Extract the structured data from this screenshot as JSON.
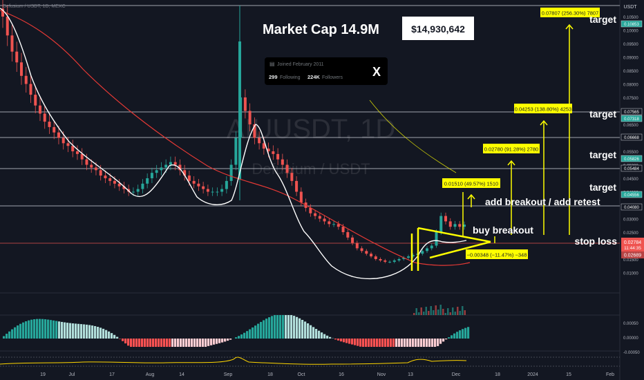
{
  "header": {
    "symbol_line": "Defusium / USDT, 1D, MEXC",
    "watermark_symbol": "AIUUSDT, 1D",
    "watermark_name": "Defusium / USDT",
    "currency": "USDT"
  },
  "market_cap": {
    "label": "Market Cap  14.9M",
    "value": "$14,930,642"
  },
  "profile_card": {
    "joined": "Joined February 2011",
    "following_count": "299",
    "following_label": "Following",
    "followers_count": "224K",
    "followers_label": "Followers",
    "x_logo": "X"
  },
  "annotations": {
    "target1": "target",
    "target2": "target",
    "target3": "target",
    "target4": "target",
    "breakout": "add breakout / add retest",
    "buy": "buy breakout",
    "stop": "stop loss"
  },
  "measure_labels": {
    "m1": "0.01510 (49.57%) 1510",
    "m2": "0.02780 (91.28%) 2780",
    "m3": "0.04253 (138.80%) 4253",
    "m4": "0.07807 (256.30%) 7807",
    "stop_box": "−0.00348 (−11.47%) −348"
  },
  "price_axis": {
    "ticks": [
      "0.10500",
      "0.10000",
      "0.09500",
      "0.09000",
      "0.08500",
      "0.08000",
      "0.07500",
      "0.07000",
      "0.06500",
      "0.06000",
      "0.05500",
      "0.05000",
      "0.04500",
      "0.04000",
      "0.03500",
      "0.03000",
      "0.02500",
      "0.02000",
      "0.01500",
      "0.01000"
    ],
    "level_labels": [
      "0.10853",
      "0.07565",
      "0.07318",
      "0.06668",
      "0.05826",
      "0.05484",
      "0.04556",
      "0.04080"
    ],
    "current_price": "0.02784",
    "countdown": "11:44:35",
    "stop_price": "0.02689",
    "macd_ticks": [
      "0.00050",
      "0.00000",
      "-0.00050"
    ]
  },
  "time_axis": {
    "labels": [
      "19",
      "Jul",
      "17",
      "Aug",
      "14",
      "Sep",
      "18",
      "Oct",
      "16",
      "Nov",
      "13",
      "Dec",
      "18",
      "2024",
      "15",
      "Feb"
    ]
  },
  "colors": {
    "background": "#131722",
    "up": "#26a69a",
    "down": "#ef5350",
    "annotation": "#ffff00",
    "ma_white": "#ffffff",
    "ma_red": "#e53935",
    "rsi": "#ffd600"
  },
  "chart_data": {
    "type": "candlestick",
    "ylim": [
      0.008,
      0.112
    ],
    "series": [
      {
        "name": "close",
        "values": [
          0.105,
          0.098,
          0.092,
          0.088,
          0.083,
          0.08,
          0.076,
          0.072,
          0.069,
          0.066,
          0.064,
          0.062,
          0.06,
          0.058,
          0.057,
          0.055,
          0.054,
          0.052,
          0.05,
          0.049,
          0.048,
          0.046,
          0.045,
          0.044,
          0.043,
          0.042,
          0.041,
          0.04,
          0.04,
          0.041,
          0.043,
          0.045,
          0.047,
          0.048,
          0.049,
          0.05,
          0.051,
          0.05,
          0.048,
          0.046,
          0.044,
          0.043,
          0.042,
          0.041,
          0.04,
          0.04,
          0.04,
          0.041,
          0.044,
          0.05,
          0.06,
          0.075,
          0.07,
          0.065,
          0.06,
          0.058,
          0.056,
          0.055,
          0.054,
          0.052,
          0.05,
          0.047,
          0.044,
          0.04,
          0.036,
          0.034,
          0.032,
          0.031,
          0.03,
          0.029,
          0.028,
          0.028,
          0.027,
          0.025,
          0.023,
          0.021,
          0.019,
          0.018,
          0.017,
          0.016,
          0.015,
          0.0145,
          0.014,
          0.014,
          0.0145,
          0.015,
          0.0155,
          0.016,
          0.0165,
          0.017,
          0.018,
          0.019,
          0.02,
          0.025,
          0.031,
          0.029,
          0.027,
          0.028,
          0.027,
          0.0278
        ]
      }
    ]
  }
}
